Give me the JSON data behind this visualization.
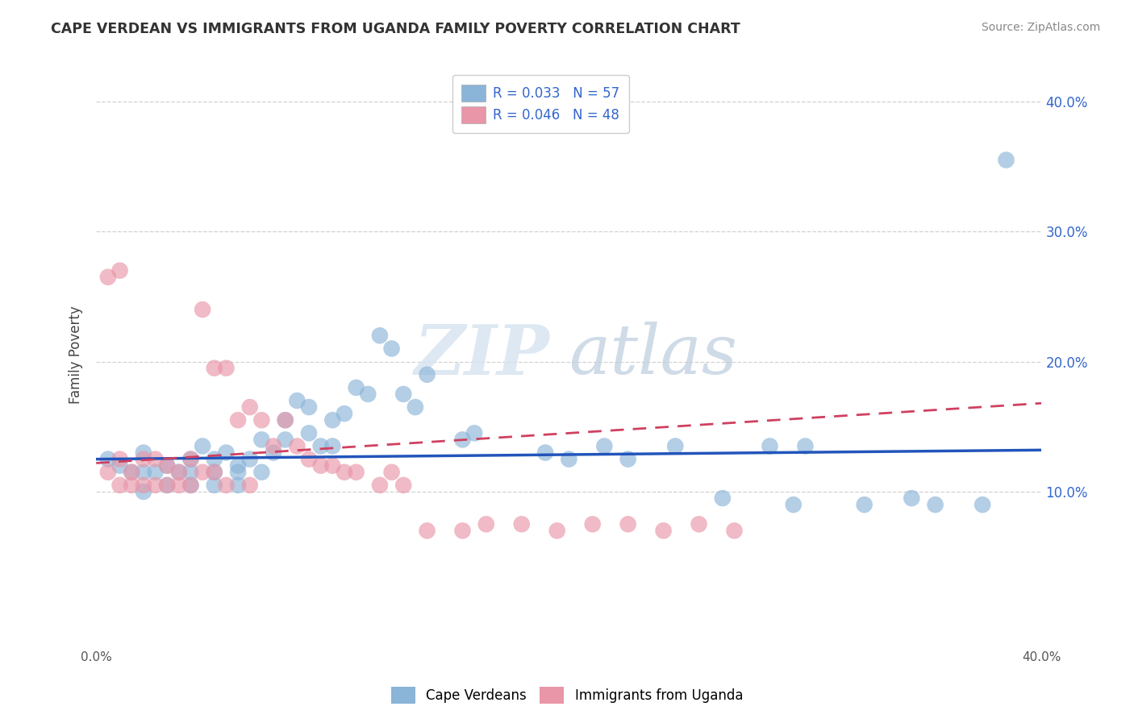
{
  "title": "CAPE VERDEAN VS IMMIGRANTS FROM UGANDA FAMILY POVERTY CORRELATION CHART",
  "source": "Source: ZipAtlas.com",
  "ylabel": "Family Poverty",
  "ytick_vals": [
    0.1,
    0.2,
    0.3,
    0.4
  ],
  "xlim": [
    0.0,
    0.4
  ],
  "ylim": [
    -0.02,
    0.43
  ],
  "legend_entries": [
    {
      "label": "R = 0.033   N = 57",
      "color": "#a8c8e8"
    },
    {
      "label": "R = 0.046   N = 48",
      "color": "#f5b8c8"
    }
  ],
  "legend_bottom": [
    "Cape Verdeans",
    "Immigrants from Uganda"
  ],
  "blue_color": "#8ab4d8",
  "pink_color": "#e896a8",
  "blue_line_color": "#2255bb",
  "pink_line_color": "#d04060",
  "watermark_zip": "ZIP",
  "watermark_atlas": "atlas",
  "blue_scatter_x": [
    0.005,
    0.01,
    0.015,
    0.02,
    0.02,
    0.02,
    0.025,
    0.03,
    0.03,
    0.035,
    0.04,
    0.04,
    0.04,
    0.045,
    0.05,
    0.05,
    0.05,
    0.055,
    0.06,
    0.06,
    0.06,
    0.065,
    0.07,
    0.07,
    0.075,
    0.08,
    0.08,
    0.085,
    0.09,
    0.09,
    0.095,
    0.1,
    0.1,
    0.105,
    0.11,
    0.115,
    0.12,
    0.125,
    0.13,
    0.135,
    0.14,
    0.155,
    0.16,
    0.19,
    0.2,
    0.215,
    0.225,
    0.245,
    0.265,
    0.285,
    0.295,
    0.3,
    0.325,
    0.345,
    0.355,
    0.375,
    0.385
  ],
  "blue_scatter_y": [
    0.125,
    0.12,
    0.115,
    0.13,
    0.115,
    0.1,
    0.115,
    0.12,
    0.105,
    0.115,
    0.125,
    0.115,
    0.105,
    0.135,
    0.125,
    0.115,
    0.105,
    0.13,
    0.12,
    0.115,
    0.105,
    0.125,
    0.14,
    0.115,
    0.13,
    0.155,
    0.14,
    0.17,
    0.165,
    0.145,
    0.135,
    0.155,
    0.135,
    0.16,
    0.18,
    0.175,
    0.22,
    0.21,
    0.175,
    0.165,
    0.19,
    0.14,
    0.145,
    0.13,
    0.125,
    0.135,
    0.125,
    0.135,
    0.095,
    0.135,
    0.09,
    0.135,
    0.09,
    0.095,
    0.09,
    0.09,
    0.355
  ],
  "pink_scatter_x": [
    0.005,
    0.005,
    0.01,
    0.01,
    0.01,
    0.015,
    0.015,
    0.02,
    0.02,
    0.025,
    0.025,
    0.03,
    0.03,
    0.035,
    0.035,
    0.04,
    0.04,
    0.045,
    0.045,
    0.05,
    0.05,
    0.055,
    0.055,
    0.06,
    0.065,
    0.065,
    0.07,
    0.075,
    0.08,
    0.085,
    0.09,
    0.095,
    0.1,
    0.105,
    0.11,
    0.12,
    0.125,
    0.13,
    0.14,
    0.155,
    0.165,
    0.18,
    0.195,
    0.21,
    0.225,
    0.24,
    0.255,
    0.27
  ],
  "pink_scatter_y": [
    0.265,
    0.115,
    0.27,
    0.125,
    0.105,
    0.115,
    0.105,
    0.125,
    0.105,
    0.125,
    0.105,
    0.12,
    0.105,
    0.115,
    0.105,
    0.125,
    0.105,
    0.24,
    0.115,
    0.195,
    0.115,
    0.195,
    0.105,
    0.155,
    0.165,
    0.105,
    0.155,
    0.135,
    0.155,
    0.135,
    0.125,
    0.12,
    0.12,
    0.115,
    0.115,
    0.105,
    0.115,
    0.105,
    0.07,
    0.07,
    0.075,
    0.075,
    0.07,
    0.075,
    0.075,
    0.07,
    0.075,
    0.07
  ],
  "blue_line_x": [
    0.0,
    0.4
  ],
  "blue_line_y": [
    0.125,
    0.132
  ],
  "pink_line_x": [
    0.0,
    0.4
  ],
  "pink_line_y": [
    0.122,
    0.168
  ],
  "grid_color": "#cccccc",
  "bg_color": "#ffffff"
}
